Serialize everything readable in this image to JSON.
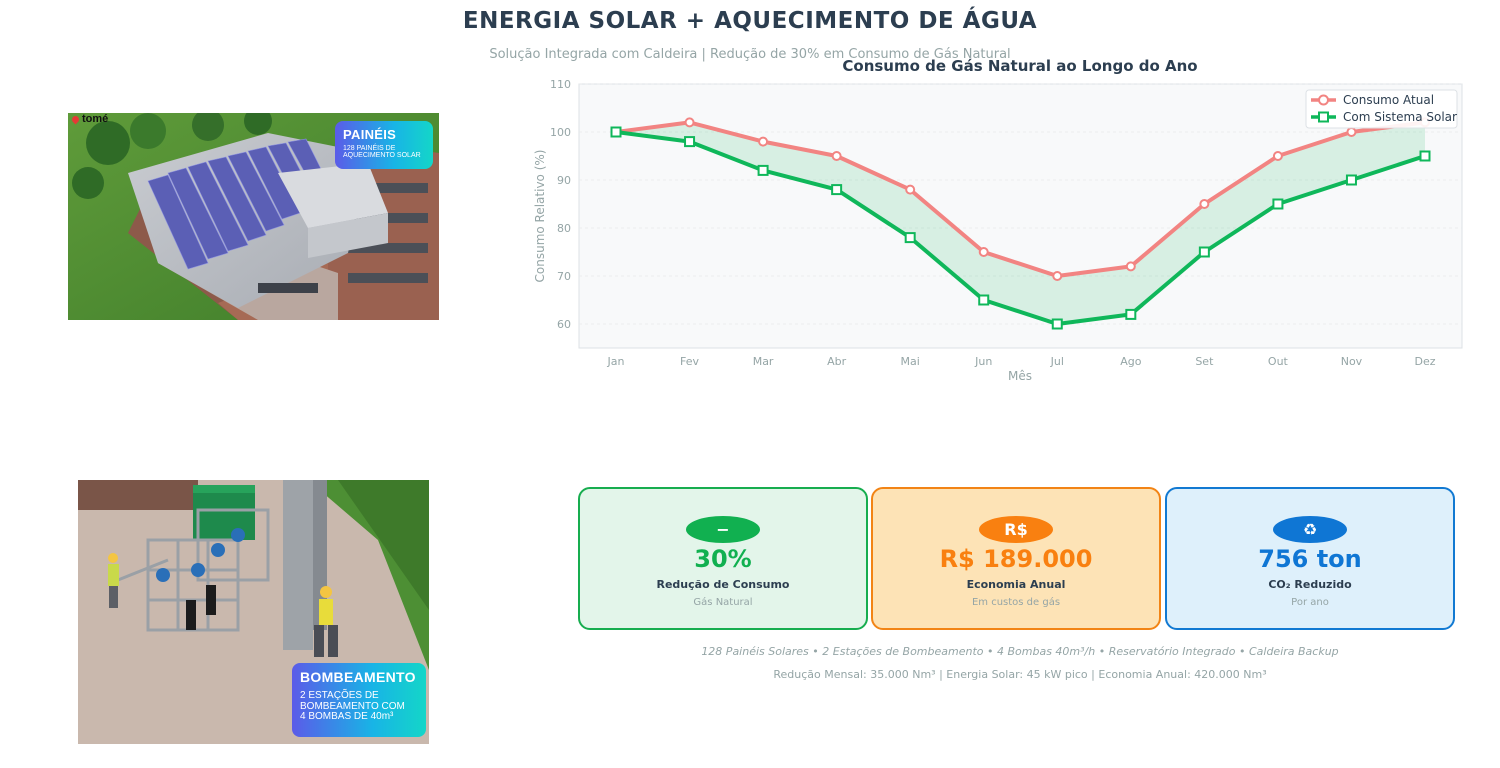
{
  "header": {
    "title": "ENERGIA SOLAR + AQUECIMENTO DE ÁGUA",
    "subtitle": "Solução Integrada com Caldeira | Redução de 30% em Consumo de Gás Natural"
  },
  "images": {
    "panels": {
      "logo": "tomé",
      "badge_title": "PAINÉIS",
      "badge_sub_1": "128 PAINÉIS DE",
      "badge_sub_2": "AQUECIMENTO SOLAR"
    },
    "pumps": {
      "badge_title": "BOMBEAMENTO",
      "badge_sub_1": "2 ESTAÇÕES DE",
      "badge_sub_2": "BOMBEAMENTO COM",
      "badge_sub_3": "4  BOMBAS DE 40m³"
    }
  },
  "chart_data": {
    "type": "line",
    "title": "Consumo de Gás Natural ao Longo do Ano",
    "xlabel": "Mês",
    "ylabel": "Consumo Relativo (%)",
    "categories": [
      "Jan",
      "Fev",
      "Mar",
      "Abr",
      "Mai",
      "Jun",
      "Jul",
      "Ago",
      "Set",
      "Out",
      "Nov",
      "Dez"
    ],
    "ylim": [
      55,
      110
    ],
    "yticks": [
      60,
      70,
      80,
      90,
      100,
      110
    ],
    "grid": true,
    "legend_position": "top-right",
    "fill_between": true,
    "series": [
      {
        "name": "Consumo Atual",
        "color": "#f28482",
        "marker": "circle",
        "values": [
          100,
          102,
          98,
          95,
          88,
          75,
          70,
          72,
          85,
          95,
          100,
          102
        ]
      },
      {
        "name": "Com Sistema Solar",
        "color": "#0fb75a",
        "marker": "square",
        "values": [
          100,
          98,
          92,
          88,
          78,
          65,
          60,
          62,
          75,
          85,
          90,
          95
        ]
      }
    ]
  },
  "cards": {
    "reduction": {
      "icon": "−",
      "value": "30%",
      "label": "Redução de Consumo",
      "sub": "Gás Natural"
    },
    "savings": {
      "icon": "R$",
      "value": "R$ 189.000",
      "label": "Economia Anual",
      "sub": "Em custos de gás"
    },
    "co2": {
      "icon": "♻",
      "value": "756 ton",
      "label": "CO₂ Reduzido",
      "sub": "Por ano"
    }
  },
  "footer": {
    "line1": "128 Painéis Solares  •  2 Estações de Bombeamento  •  4 Bombas 40m³/h  •  Reservatório Integrado  •  Caldeira Backup",
    "line2": "Redução Mensal: 35.000 Nm³  |  Energia Solar: 45 kW pico  |  Economia Anual: 420.000 Nm³"
  }
}
